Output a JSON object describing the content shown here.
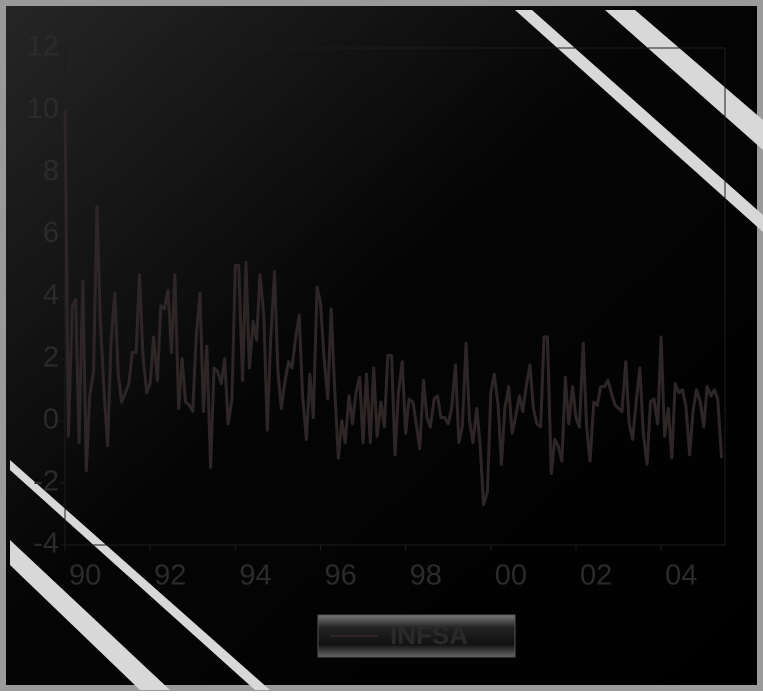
{
  "chart_data": {
    "type": "line",
    "x": [
      1990,
      1990.08,
      1990.17,
      1990.25,
      1990.33,
      1990.42,
      1990.5,
      1990.58,
      1990.67,
      1990.75,
      1990.83,
      1990.92,
      1991,
      1991.08,
      1991.17,
      1991.25,
      1991.33,
      1991.42,
      1991.5,
      1991.58,
      1991.67,
      1991.75,
      1991.83,
      1991.92,
      1992,
      1992.08,
      1992.17,
      1992.25,
      1992.33,
      1992.42,
      1992.5,
      1992.58,
      1992.67,
      1992.75,
      1992.83,
      1992.92,
      1993,
      1993.08,
      1993.17,
      1993.25,
      1993.33,
      1993.42,
      1993.5,
      1993.58,
      1993.67,
      1993.75,
      1993.83,
      1993.92,
      1994,
      1994.08,
      1994.17,
      1994.25,
      1994.33,
      1994.42,
      1994.5,
      1994.58,
      1994.67,
      1994.75,
      1994.83,
      1994.92,
      1995,
      1995.08,
      1995.17,
      1995.25,
      1995.33,
      1995.42,
      1995.5,
      1995.58,
      1995.67,
      1995.75,
      1995.83,
      1995.92,
      1996,
      1996.08,
      1996.17,
      1996.25,
      1996.33,
      1996.42,
      1996.5,
      1996.58,
      1996.67,
      1996.75,
      1996.83,
      1996.92,
      1997,
      1997.08,
      1997.17,
      1997.25,
      1997.33,
      1997.42,
      1997.5,
      1997.58,
      1997.67,
      1997.75,
      1997.83,
      1997.92,
      1998,
      1998.08,
      1998.17,
      1998.25,
      1998.33,
      1998.42,
      1998.5,
      1998.58,
      1998.67,
      1998.75,
      1998.83,
      1998.92,
      1999,
      1999.08,
      1999.17,
      1999.25,
      1999.33,
      1999.42,
      1999.5,
      1999.58,
      1999.67,
      1999.75,
      1999.83,
      1999.92,
      2000,
      2000.08,
      2000.17,
      2000.25,
      2000.33,
      2000.42,
      2000.5,
      2000.58,
      2000.67,
      2000.75,
      2000.83,
      2000.92,
      2001,
      2001.08,
      2001.17,
      2001.25,
      2001.33,
      2001.42,
      2001.5,
      2001.58,
      2001.67,
      2001.75,
      2001.83,
      2001.92,
      2002,
      2002.08,
      2002.17,
      2002.25,
      2002.33,
      2002.42,
      2002.5,
      2002.58,
      2002.67,
      2002.75,
      2002.83,
      2002.92,
      2003,
      2003.08,
      2003.17,
      2003.25,
      2003.33,
      2003.42,
      2003.5,
      2003.58,
      2003.67,
      2003.75,
      2003.83,
      2003.92,
      2004,
      2004.08,
      2004.17,
      2004.25,
      2004.33,
      2004.42,
      2004.5,
      2004.58,
      2004.67,
      2004.75,
      2004.83,
      2004.92,
      2005,
      2005.08,
      2005.17,
      2005.25,
      2005.33,
      2005.42
    ],
    "series": [
      {
        "name": "INFSA",
        "color": "#2e2626",
        "values": [
          10,
          -0.5,
          3.7,
          3.9,
          -0.7,
          4.5,
          -1.6,
          0.8,
          1.6,
          6.9,
          3.2,
          0.9,
          -0.8,
          2.5,
          4.1,
          1.5,
          0.6,
          0.9,
          1.2,
          2.2,
          2.2,
          4.7,
          2.1,
          0.9,
          1.2,
          2.7,
          1.3,
          3.7,
          3.6,
          4.2,
          2.2,
          4.7,
          0.4,
          2.0,
          0.6,
          0.5,
          0.3,
          2.7,
          4.1,
          0.3,
          2.4,
          -1.5,
          1.7,
          1.6,
          1.2,
          2.0,
          -0.1,
          0.7,
          5.0,
          5.0,
          1.3,
          5.1,
          1.7,
          3.2,
          2.6,
          4.7,
          3.4,
          -0.3,
          2.6,
          4.8,
          1.6,
          0.4,
          1.3,
          1.9,
          1.7,
          2.7,
          3.4,
          0.8,
          -0.6,
          1.5,
          0.1,
          4.3,
          3.8,
          2.1,
          0.7,
          3.6,
          1.1,
          -1.2,
          0.0,
          -0.7,
          0.8,
          -0.1,
          0.9,
          1.4,
          -0.7,
          1.5,
          -0.7,
          1.7,
          -0.5,
          0.6,
          -0.2,
          2.1,
          2.1,
          -1.1,
          0.9,
          1.9,
          -0.4,
          0.7,
          0.6,
          -0.1,
          -0.9,
          1.3,
          0.1,
          -0.2,
          0.7,
          0.8,
          0.1,
          0.1,
          -0.1,
          0.4,
          1.8,
          -0.7,
          -0.2,
          2.5,
          0.0,
          -0.7,
          0.4,
          -0.8,
          -2.7,
          -2.3,
          0.9,
          1.5,
          0.5,
          -1.4,
          0.4,
          1.1,
          -0.4,
          0.1,
          0.8,
          0.3,
          1.1,
          1.8,
          0.4,
          -0.1,
          -0.2,
          2.7,
          2.7,
          -1.7,
          -0.6,
          -0.8,
          -1.3,
          1.4,
          -0.1,
          1.1,
          0.1,
          -0.2,
          2.5,
          -0.2,
          -1.3,
          0.6,
          0.5,
          1.1,
          1.1,
          1.3,
          0.9,
          0.5,
          0.4,
          0.3,
          1.9,
          -0.1,
          -0.6,
          0.7,
          1.7,
          -0.4,
          -1.4,
          0.6,
          0.7,
          -0.1,
          2.7,
          -0.5,
          0.4,
          -1.2,
          1.2,
          0.9,
          1.0,
          0.5,
          -1.1,
          0.3,
          1.0,
          0.6,
          -0.2,
          1.1,
          0.8,
          1.0,
          0.7,
          -1.2
        ]
      }
    ],
    "xlim": [
      1990,
      2005.5
    ],
    "xticks": [
      {
        "value": 1990,
        "label": "90"
      },
      {
        "value": 1992,
        "label": "92"
      },
      {
        "value": 1994,
        "label": "94"
      },
      {
        "value": 1996,
        "label": "96"
      },
      {
        "value": 1998,
        "label": "98"
      },
      {
        "value": 2000,
        "label": "00"
      },
      {
        "value": 2002,
        "label": "02"
      },
      {
        "value": 2004,
        "label": "04"
      }
    ],
    "ylim": [
      -4,
      12
    ],
    "yticks": [
      -4,
      -2,
      0,
      2,
      4,
      6,
      8,
      10,
      12
    ],
    "legend": "bottom"
  }
}
